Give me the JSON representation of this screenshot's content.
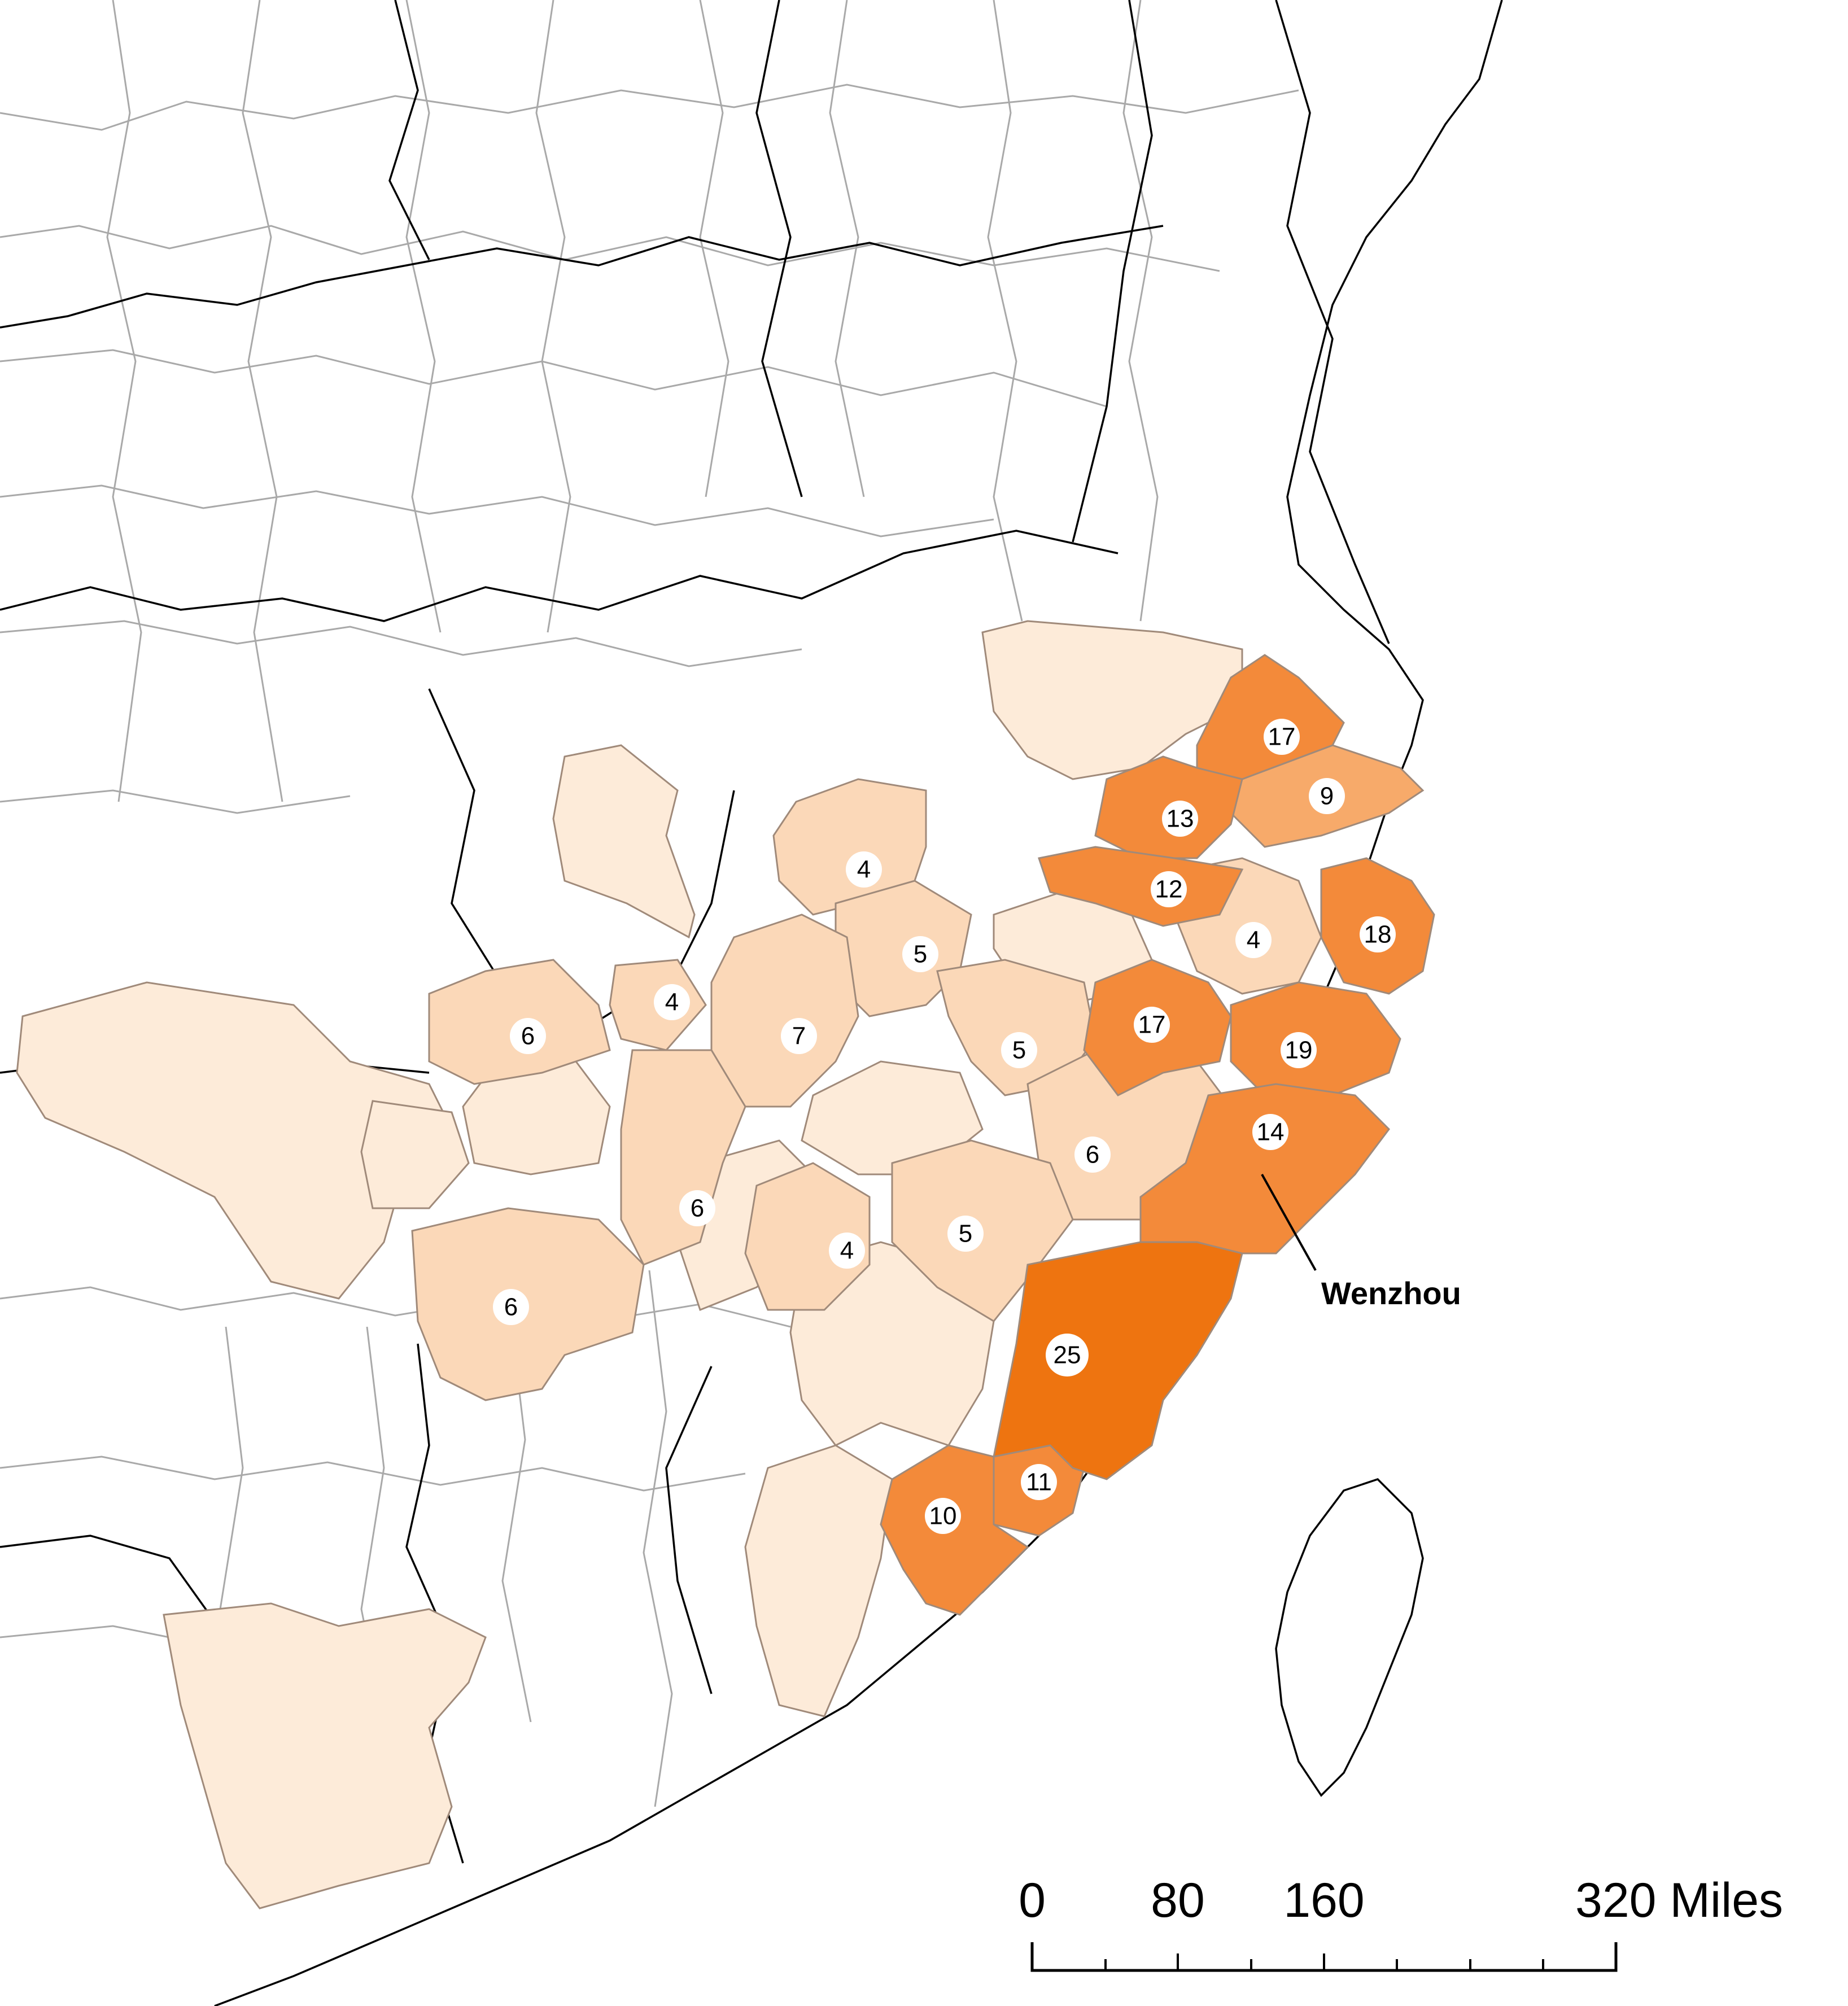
{
  "colors": {
    "c1": "#fdebd9",
    "c2": "#fbd8b8",
    "c3": "#f7aa6a",
    "c4": "#f38a3a",
    "c5": "#ee7410",
    "border": "#000000",
    "admin_line": "#a9a9a9"
  },
  "regions": [
    {
      "id": "r-17a",
      "value": "17",
      "class": "c4"
    },
    {
      "id": "r-9",
      "value": "9",
      "class": "c3"
    },
    {
      "id": "r-13",
      "value": "13",
      "class": "c4"
    },
    {
      "id": "r-12",
      "value": "12",
      "class": "c4"
    },
    {
      "id": "r-4a",
      "value": "4",
      "class": "c2"
    },
    {
      "id": "r-18",
      "value": "18",
      "class": "c4"
    },
    {
      "id": "r-4b",
      "value": "4",
      "class": "c2"
    },
    {
      "id": "r-5a",
      "value": "5",
      "class": "c2"
    },
    {
      "id": "r-17b",
      "value": "17",
      "class": "c4"
    },
    {
      "id": "r-19",
      "value": "19",
      "class": "c4"
    },
    {
      "id": "r-4c",
      "value": "4",
      "class": "c2"
    },
    {
      "id": "r-6a",
      "value": "6",
      "class": "c2"
    },
    {
      "id": "r-7",
      "value": "7",
      "class": "c2"
    },
    {
      "id": "r-5b",
      "value": "5",
      "class": "c2"
    },
    {
      "id": "r-14",
      "value": "14",
      "class": "c4"
    },
    {
      "id": "r-6b",
      "value": "6",
      "class": "c2"
    },
    {
      "id": "r-6c",
      "value": "6",
      "class": "c2"
    },
    {
      "id": "r-4d",
      "value": "4",
      "class": "c2"
    },
    {
      "id": "r-5c",
      "value": "5",
      "class": "c2"
    },
    {
      "id": "r-6d",
      "value": "6",
      "class": "c2"
    },
    {
      "id": "r-25",
      "value": "25",
      "class": "c5"
    },
    {
      "id": "r-11",
      "value": "11",
      "class": "c4"
    },
    {
      "id": "r-10",
      "value": "10",
      "class": "c4"
    }
  ],
  "callout": {
    "label": "Wenzhou"
  },
  "scale_bar": {
    "ticks": [
      "0",
      "80",
      "160",
      "320 Miles"
    ]
  }
}
